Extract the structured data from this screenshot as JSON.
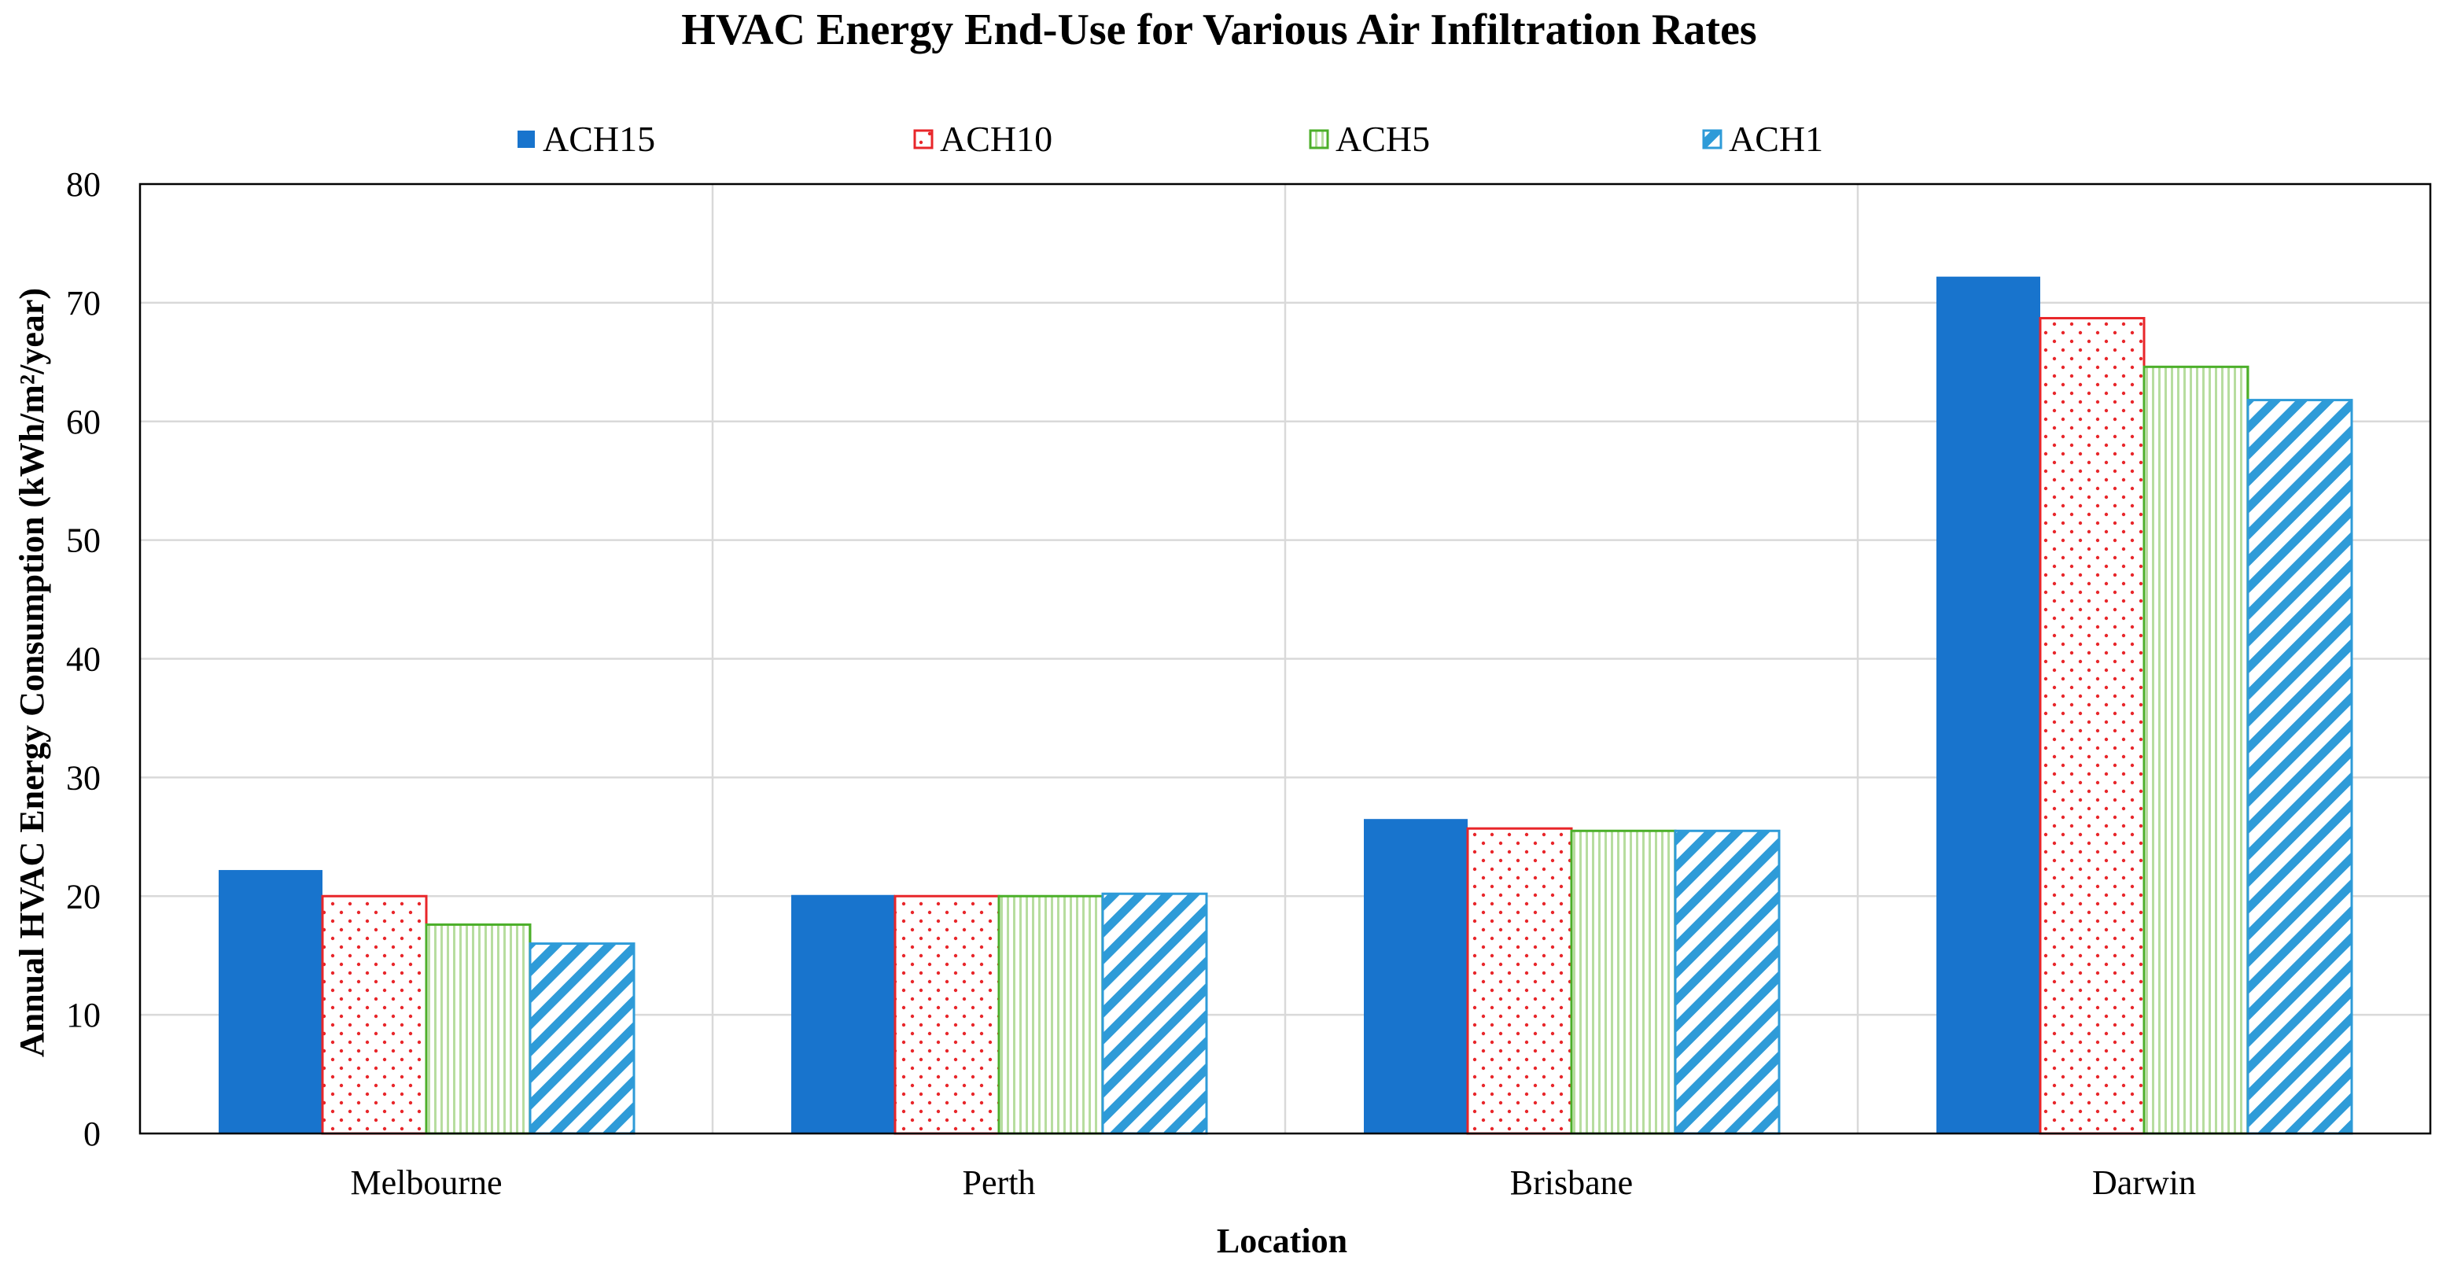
{
  "chart_data": {
    "type": "bar",
    "title": "HVAC Energy End-Use for Various Air Infiltration Rates",
    "xlabel": "Location",
    "ylabel": "Annual HVAC Energy Consumption (kWh/m²/year)",
    "categories": [
      "Melbourne",
      "Perth",
      "Brisbane",
      "Darwin"
    ],
    "ylim": [
      0,
      80
    ],
    "yticks": [
      0,
      10,
      20,
      30,
      40,
      50,
      60,
      70,
      80
    ],
    "grid": true,
    "legend_position": "top",
    "series": [
      {
        "name": "ACH15",
        "values": [
          22.2,
          20.1,
          26.5,
          72.2
        ],
        "color": "#1874CD",
        "pattern": "solid"
      },
      {
        "name": "ACH10",
        "values": [
          20.0,
          20.0,
          25.7,
          68.7
        ],
        "color": "#E8262A",
        "pattern": "dots"
      },
      {
        "name": "ACH5",
        "values": [
          17.6,
          20.0,
          25.5,
          64.6
        ],
        "color": "#4CAF2A",
        "pattern": "vertical-lines"
      },
      {
        "name": "ACH1",
        "values": [
          16.0,
          20.2,
          25.5,
          61.8
        ],
        "color": "#2E9BD8",
        "pattern": "diagonal-stripes"
      }
    ]
  }
}
